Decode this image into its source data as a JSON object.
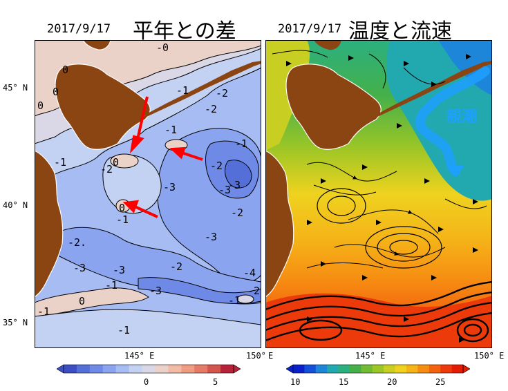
{
  "left_panel": {
    "date": "2017/9/17",
    "title": "平年との差",
    "lat_labels": [
      "45° N",
      "40° N",
      "35° N"
    ],
    "lon_labels": [
      "145° E",
      "150°"
    ],
    "contour_labels": [
      {
        "text": "-0"
      },
      {
        "text": "0"
      },
      {
        "text": "0"
      },
      {
        "text": "0"
      },
      {
        "text": "-1"
      },
      {
        "text": "-2"
      },
      {
        "text": "-1"
      },
      {
        "text": "-1"
      },
      {
        "text": "-1"
      },
      {
        "text": "-2"
      },
      {
        "text": "0"
      },
      {
        "text": "-2"
      },
      {
        "text": "-3"
      },
      {
        "text": "-3"
      },
      {
        "text": "-3"
      },
      {
        "text": "-2"
      },
      {
        "text": "0"
      },
      {
        "text": "-1"
      },
      {
        "text": "-3"
      },
      {
        "text": "-2."
      },
      {
        "text": "-3"
      },
      {
        "text": "-3"
      },
      {
        "text": "-2"
      },
      {
        "text": "-4"
      },
      {
        "text": "-3"
      },
      {
        "text": "-1"
      },
      {
        "text": "-2"
      },
      {
        "text": "-1"
      },
      {
        "text": "0"
      },
      {
        "text": "-1"
      },
      {
        "text": "-1"
      },
      {
        "text": "-2"
      }
    ],
    "colorbar": {
      "min": -5,
      "max": 5,
      "tick_labels": [
        "0",
        "5"
      ],
      "colors": [
        "#3c4fc2",
        "#5470d8",
        "#6e8ae6",
        "#8aa4ef",
        "#a7bcf3",
        "#c3d2f2",
        "#dad7e6",
        "#ead2c8",
        "#f2bba5",
        "#ef9c83",
        "#e57a66",
        "#d4544e",
        "#b8233a"
      ]
    }
  },
  "right_panel": {
    "date": "2017/9/17",
    "title": "温度と流速",
    "label_oyashio": "親潮",
    "lon_labels": [
      "E",
      "145° E",
      "150° E"
    ],
    "colorbar": {
      "min": 10,
      "max": 27,
      "tick_labels": [
        "10",
        "15",
        "20",
        "25"
      ],
      "colors": [
        "#0a20c8",
        "#1450d8",
        "#1d86d8",
        "#22a9b0",
        "#2bb080",
        "#45b04a",
        "#72bb33",
        "#9cc626",
        "#c8cf22",
        "#efd21f",
        "#f5b318",
        "#f68c12",
        "#f3620e",
        "#ec3a0a",
        "#e41c06"
      ]
    }
  },
  "colors": {
    "land": "#8b4513",
    "arrow": "#ff0000",
    "oyashio": "#1ea0ff"
  }
}
